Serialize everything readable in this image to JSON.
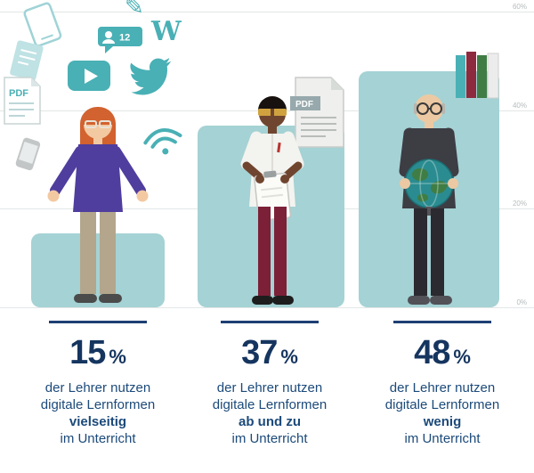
{
  "chart_data": {
    "type": "bar",
    "categories": [
      "vielseitig",
      "ab und zu",
      "wenig"
    ],
    "values": [
      15,
      37,
      48
    ],
    "unit": "%",
    "ylim": [
      0,
      60
    ],
    "yticks": [
      "60%",
      "40%",
      "20%",
      "0%"
    ],
    "grid": true,
    "legend_position": "none",
    "bar_color": "#a5d2d4"
  },
  "stats": [
    {
      "value": "15",
      "unit": "%",
      "line1": "der Lehrer nutzen",
      "line2": "digitale Lernformen",
      "emphasis": "vielseitig",
      "line3": "im Unterricht"
    },
    {
      "value": "37",
      "unit": "%",
      "line1": "der Lehrer nutzen",
      "line2": "digitale Lernformen",
      "emphasis": "ab und zu",
      "line3": "im Unterricht"
    },
    {
      "value": "48",
      "unit": "%",
      "line1": "der Lehrer nutzen",
      "line2": "digitale Lernformen",
      "emphasis": "wenig",
      "line3": "im Unterricht"
    }
  ],
  "icons": {
    "user_count_badge": "12",
    "wikipedia_letter": "W",
    "pdf_small_label": "PDF",
    "pdf_document_label": "PDF",
    "names": [
      "tablet-icon",
      "document-icon",
      "pencil-icon",
      "user-count-badge-icon",
      "wikipedia-w-icon",
      "video-play-icon",
      "twitter-bird-icon",
      "pdf-icon",
      "wifi-icon",
      "phone-icon",
      "pdf-document-icon",
      "books-stack-icon",
      "globe-icon"
    ]
  },
  "colors": {
    "accent_teal": "#49b0b5",
    "bar_fill": "#a5d2d4",
    "number_navy": "#15355f",
    "text_blue": "#1c4a7a"
  }
}
